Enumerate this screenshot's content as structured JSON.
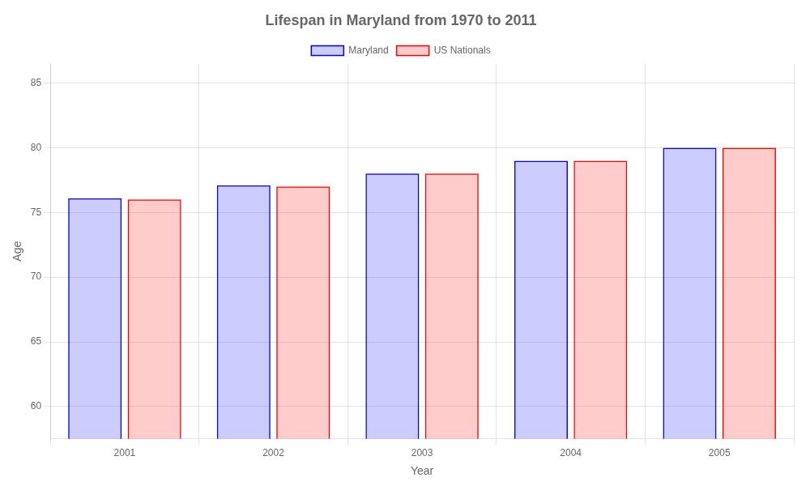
{
  "chart_data": {
    "type": "bar",
    "title": "Lifespan in Maryland from 1970 to 2011",
    "xlabel": "Year",
    "ylabel": "Age",
    "categories": [
      "2001",
      "2002",
      "2003",
      "2004",
      "2005"
    ],
    "series": [
      {
        "name": "Maryland",
        "color": "#0000ff",
        "values": [
          76.1,
          77.1,
          78.0,
          79.0,
          80.0
        ]
      },
      {
        "name": "US Nationals",
        "color": "#ff0000",
        "values": [
          76.0,
          77.0,
          78.0,
          79.0,
          80.0
        ]
      }
    ],
    "ylim": [
      57.5,
      86.5
    ],
    "yticks": [
      60,
      65,
      70,
      75,
      80,
      85
    ],
    "grid": true,
    "legend": "top"
  }
}
